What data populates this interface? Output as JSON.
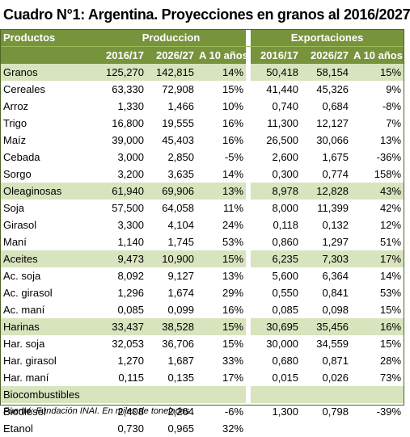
{
  "title": "Cuadro N°1: Argentina. Proyecciones en granos al 2016/2027",
  "header": {
    "productos": "Productos",
    "produccion": "Produccion",
    "exportaciones": "Exportaciones",
    "cols": [
      "2016/17",
      "2026/27",
      "A 10 años",
      "2016/17",
      "2026/27",
      "A 10 años"
    ]
  },
  "rows": [
    {
      "name": "Granos",
      "group": true,
      "v": [
        "125,270",
        "142,815",
        "14%",
        "50,418",
        "58,154",
        "15%"
      ]
    },
    {
      "name": "Cereales",
      "group": false,
      "v": [
        "63,330",
        "72,908",
        "15%",
        "41,440",
        "45,326",
        "9%"
      ]
    },
    {
      "name": "Arroz",
      "group": false,
      "v": [
        "1,330",
        "1,466",
        "10%",
        "0,740",
        "0,684",
        "-8%"
      ]
    },
    {
      "name": "Trigo",
      "group": false,
      "v": [
        "16,800",
        "19,555",
        "16%",
        "11,300",
        "12,127",
        "7%"
      ]
    },
    {
      "name": "Maíz",
      "group": false,
      "v": [
        "39,000",
        "45,403",
        "16%",
        "26,500",
        "30,066",
        "13%"
      ]
    },
    {
      "name": "Cebada",
      "group": false,
      "v": [
        "3,000",
        "2,850",
        "-5%",
        "2,600",
        "1,675",
        "-36%"
      ]
    },
    {
      "name": "Sorgo",
      "group": false,
      "v": [
        "3,200",
        "3,635",
        "14%",
        "0,300",
        "0,774",
        "158%"
      ]
    },
    {
      "name": "Oleaginosas",
      "group": true,
      "v": [
        "61,940",
        "69,906",
        "13%",
        "8,978",
        "12,828",
        "43%"
      ]
    },
    {
      "name": "Soja",
      "group": false,
      "v": [
        "57,500",
        "64,058",
        "11%",
        "8,000",
        "11,399",
        "42%"
      ]
    },
    {
      "name": "Girasol",
      "group": false,
      "v": [
        "3,300",
        "4,104",
        "24%",
        "0,118",
        "0,132",
        "12%"
      ]
    },
    {
      "name": "Maní",
      "group": false,
      "v": [
        "1,140",
        "1,745",
        "53%",
        "0,860",
        "1,297",
        "51%"
      ]
    },
    {
      "name": "Aceites",
      "group": true,
      "v": [
        "9,473",
        "10,900",
        "15%",
        "6,235",
        "7,303",
        "17%"
      ]
    },
    {
      "name": "Ac. soja",
      "group": false,
      "v": [
        "8,092",
        "9,127",
        "13%",
        "5,600",
        "6,364",
        "14%"
      ]
    },
    {
      "name": "Ac. girasol",
      "group": false,
      "v": [
        "1,296",
        "1,674",
        "29%",
        "0,550",
        "0,841",
        "53%"
      ]
    },
    {
      "name": "Ac. maní",
      "group": false,
      "v": [
        "0,085",
        "0,099",
        "16%",
        "0,085",
        "0,098",
        "15%"
      ]
    },
    {
      "name": "Harinas",
      "group": true,
      "v": [
        "33,437",
        "38,528",
        "15%",
        "30,695",
        "35,456",
        "16%"
      ]
    },
    {
      "name": "Har. soja",
      "group": false,
      "v": [
        "32,053",
        "36,706",
        "15%",
        "30,000",
        "34,559",
        "15%"
      ]
    },
    {
      "name": "Har. girasol",
      "group": false,
      "v": [
        "1,270",
        "1,687",
        "33%",
        "0,680",
        "0,871",
        "28%"
      ]
    },
    {
      "name": "Har. maní",
      "group": false,
      "v": [
        "0,115",
        "0,135",
        "17%",
        "0,015",
        "0,026",
        "73%"
      ]
    },
    {
      "name": "Biocombustibles",
      "group": true,
      "v": [
        "",
        "",
        "",
        "",
        "",
        ""
      ]
    },
    {
      "name": "Biodiésel",
      "group": false,
      "v": [
        "2,408",
        "2,264",
        "-6%",
        "1,300",
        "0,798",
        "-39%"
      ]
    },
    {
      "name": "Etanol",
      "group": false,
      "v": [
        "0,730",
        "0,965",
        "32%",
        "",
        "",
        ""
      ]
    }
  ],
  "source": "Fuente: Fundación INAI. En miles de toneladas",
  "colors": {
    "header_dark": "#77933c",
    "group_light": "#d7e4bd"
  }
}
